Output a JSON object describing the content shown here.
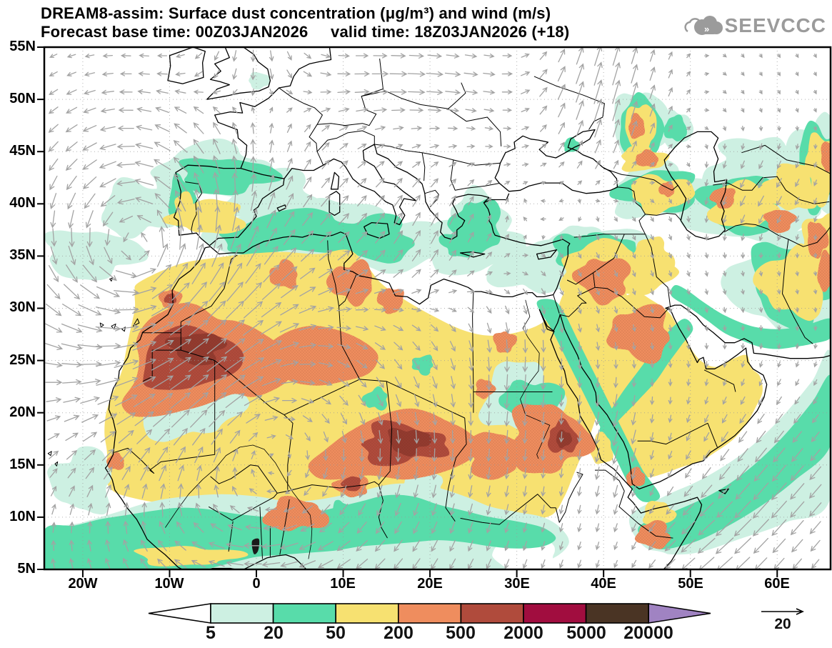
{
  "title": {
    "line1": "DREAM8-assim: Surface dust concentration (μg/m³) and wind (m/s)",
    "line2": "Forecast base time: 00Z03JAN2026     valid time: 18Z03JAN2026 (+18)"
  },
  "logo": {
    "text": "SEEVCCC",
    "color": "#9b9b9b"
  },
  "map": {
    "lat_ticks": [
      "55N",
      "50N",
      "45N",
      "40N",
      "35N",
      "30N",
      "25N",
      "20N",
      "15N",
      "10N",
      "5N"
    ],
    "lon_ticks": [
      "20W",
      "10W",
      "0",
      "10E",
      "20E",
      "30E",
      "40E",
      "50E",
      "60E"
    ]
  },
  "colorbar": {
    "labels": [
      "5",
      "20",
      "50",
      "200",
      "500",
      "2000",
      "5000",
      "20000"
    ],
    "segment_colors": [
      "#cdf0e2",
      "#58dcaa",
      "#f7e171",
      "#ef8d5e",
      "#b04b3c",
      "#a10d3f",
      "#4a3424"
    ],
    "left_arrow_color": "#ffffff",
    "right_arrow_color": "#a083c2"
  },
  "wind_legend": {
    "value": "20"
  },
  "chart_data": {
    "type": "heatmap",
    "title": "DREAM8-assim: Surface dust concentration (μg/m³) and wind (m/s)",
    "forecast_base_time": "00Z03JAN2026",
    "valid_time": "18Z03JAN2026",
    "forecast_hour": "+18",
    "units": {
      "dust": "μg/m³",
      "wind": "m/s"
    },
    "legend_bins": [
      5,
      20,
      50,
      200,
      500,
      2000,
      5000,
      20000
    ],
    "wind_reference": 20,
    "lat_axis": [
      "5N",
      "10N",
      "15N",
      "20N",
      "25N",
      "30N",
      "35N",
      "40N",
      "45N",
      "50N",
      "55N"
    ],
    "lon_axis": [
      "20W",
      "10W",
      "0",
      "10E",
      "20E",
      "30E",
      "40E",
      "50E",
      "60E"
    ]
  }
}
